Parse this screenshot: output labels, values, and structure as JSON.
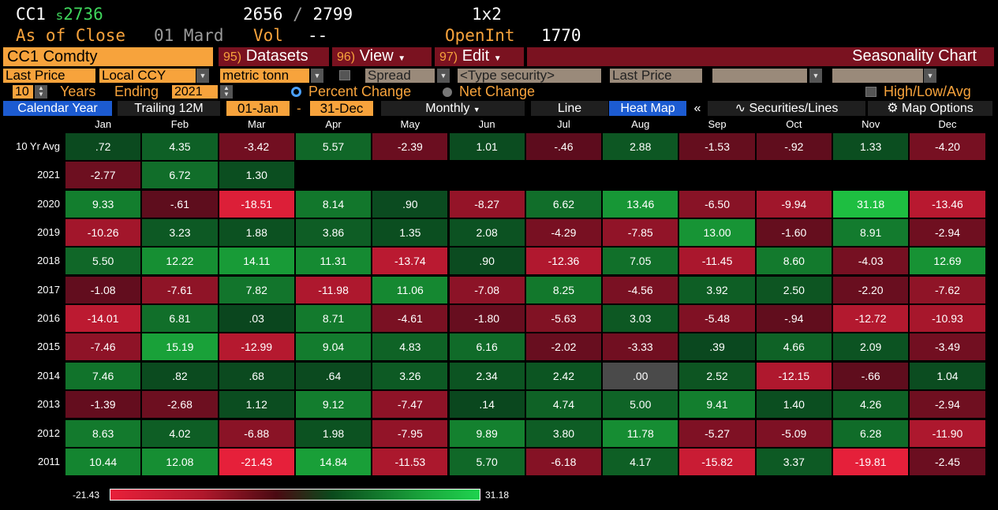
{
  "header": {
    "ticker": "CC1",
    "last_prefix": "s",
    "last_value": "2736",
    "low": "2656",
    "slash": "/",
    "high": "2799",
    "size": "1x2",
    "as_of": "As of Close",
    "as_of_date": "01 Mard",
    "vol_label": "Vol",
    "vol_value": "--",
    "openint_label": "OpenInt",
    "openint_value": "1770"
  },
  "toolbar": {
    "security": "CC1 Comdty",
    "datasets_num": "95)",
    "datasets_label": "Datasets",
    "view_num": "96)",
    "view_label": "View",
    "edit_num": "97)",
    "edit_label": "Edit",
    "title": "Seasonality Chart"
  },
  "options": {
    "field": "Last Price",
    "currency": "Local CCY",
    "unit": "metric tonn",
    "spread": "Spread",
    "type_security": "<Type security>",
    "field2": "Last Price"
  },
  "years_row": {
    "years_value": "10",
    "years_label": "Years",
    "ending_label": "Ending",
    "ending_value": "2021",
    "percent_change": "Percent Change",
    "net_change": "Net Change",
    "high_low_avg": "High/Low/Avg"
  },
  "tabs": {
    "calendar_year": "Calendar Year",
    "trailing": "Trailing 12M",
    "from": "01-Jan",
    "dash": "-",
    "to": "31-Dec",
    "monthly": "Monthly",
    "line": "Line",
    "heat_map": "Heat Map",
    "collapse": "«",
    "securities_lines": "Securities/Lines",
    "map_options": "Map Options"
  },
  "grid": {
    "months": [
      "Jan",
      "Feb",
      "Mar",
      "Apr",
      "May",
      "Jun",
      "Jul",
      "Aug",
      "Sep",
      "Oct",
      "Nov",
      "Dec"
    ],
    "rows": [
      {
        "label": "10 Yr Avg",
        "values": [
          ".72",
          "4.35",
          "-3.42",
          "5.57",
          "-2.39",
          "1.01",
          "-.46",
          "2.88",
          "-1.53",
          "-.92",
          "1.33",
          "-4.20"
        ]
      },
      {
        "label": "2021",
        "values": [
          "-2.77",
          "6.72",
          "1.30"
        ]
      },
      {
        "label": "2020",
        "values": [
          "9.33",
          "-.61",
          "-18.51",
          "8.14",
          ".90",
          "-8.27",
          "6.62",
          "13.46",
          "-6.50",
          "-9.94",
          "31.18",
          "-13.46"
        ]
      },
      {
        "label": "2019",
        "values": [
          "-10.26",
          "3.23",
          "1.88",
          "3.86",
          "1.35",
          "2.08",
          "-4.29",
          "-7.85",
          "13.00",
          "-1.60",
          "8.91",
          "-2.94"
        ]
      },
      {
        "label": "2018",
        "values": [
          "5.50",
          "12.22",
          "14.11",
          "11.31",
          "-13.74",
          ".90",
          "-12.36",
          "7.05",
          "-11.45",
          "8.60",
          "-4.03",
          "12.69"
        ]
      },
      {
        "label": "2017",
        "values": [
          "-1.08",
          "-7.61",
          "7.82",
          "-11.98",
          "11.06",
          "-7.08",
          "8.25",
          "-4.56",
          "3.92",
          "2.50",
          "-2.20",
          "-7.62"
        ]
      },
      {
        "label": "2016",
        "values": [
          "-14.01",
          "6.81",
          ".03",
          "8.71",
          "-4.61",
          "-1.80",
          "-5.63",
          "3.03",
          "-5.48",
          "-.94",
          "-12.72",
          "-10.93"
        ]
      },
      {
        "label": "2015",
        "values": [
          "-7.46",
          "15.19",
          "-12.99",
          "9.04",
          "4.83",
          "6.16",
          "-2.02",
          "-3.33",
          ".39",
          "4.66",
          "2.09",
          "-3.49"
        ]
      },
      {
        "label": "2014",
        "values": [
          "7.46",
          ".82",
          ".68",
          ".64",
          "3.26",
          "2.34",
          "2.42",
          ".00",
          "2.52",
          "-12.15",
          "-.66",
          "1.04"
        ]
      },
      {
        "label": "2013",
        "values": [
          "-1.39",
          "-2.68",
          "1.12",
          "9.12",
          "-7.47",
          ".14",
          "4.74",
          "5.00",
          "9.41",
          "1.40",
          "4.26",
          "-2.94"
        ]
      },
      {
        "label": "2012",
        "values": [
          "8.63",
          "4.02",
          "-6.88",
          "1.98",
          "-7.95",
          "9.89",
          "3.80",
          "11.78",
          "-5.27",
          "-5.09",
          "6.28",
          "-11.90"
        ]
      },
      {
        "label": "2011",
        "values": [
          "10.44",
          "12.08",
          "-21.43",
          "14.84",
          "-11.53",
          "5.70",
          "-6.18",
          "4.17",
          "-15.82",
          "3.37",
          "-19.81",
          "-2.45"
        ]
      }
    ]
  },
  "legend": {
    "min": "-21.43",
    "max": "31.18"
  },
  "colors": {
    "accent_orange": "#f7a33c",
    "toolbar_red": "#7a1220",
    "tab_blue": "#1c5bd1",
    "zero_cell": "#4a4a4a"
  }
}
